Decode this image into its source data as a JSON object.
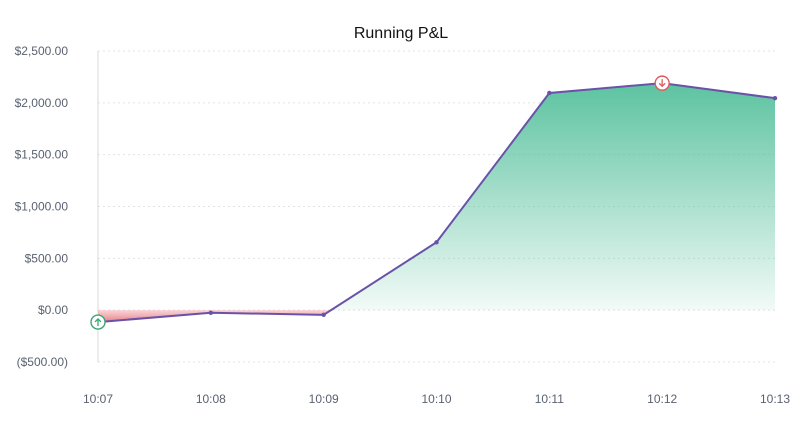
{
  "chart_data": {
    "type": "area",
    "title": "Running P&L",
    "x": [
      "10:07",
      "10:08",
      "10:09",
      "10:10",
      "10:11",
      "10:12",
      "10:13"
    ],
    "series": [
      {
        "values": [
          -115,
          -25,
          -45,
          655,
          2095,
          2190,
          2045
        ]
      }
    ],
    "ylim": [
      -500,
      2500
    ],
    "yticks": [
      2500,
      2000,
      1500,
      1000,
      500,
      0,
      -500
    ],
    "ytick_labels": [
      "$2,500.00",
      "$2,000.00",
      "$1,500.00",
      "$1,000.00",
      "$500.00",
      "$0.00",
      "($500.00)"
    ],
    "grid": true,
    "positive_fill_color": "#5cc3a0",
    "negative_fill_color": "#f2a7ad",
    "line_color": "#6a52a8",
    "markers": [
      {
        "x": "10:07",
        "value": -115,
        "icon": "arrow-up-icon",
        "color": "#3aa673"
      },
      {
        "x": "10:12",
        "value": 2190,
        "icon": "arrow-down-icon",
        "color": "#e2585e"
      }
    ]
  }
}
